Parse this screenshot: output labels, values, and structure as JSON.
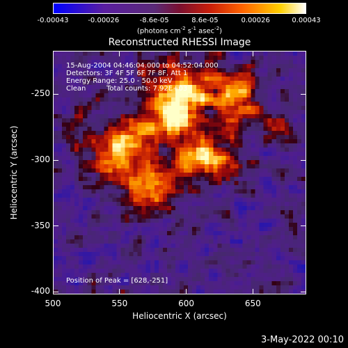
{
  "colorbar": {
    "tick_labels": [
      "-0.00043",
      "-0.00026",
      "-8.6e-05",
      "8.6e-05",
      "0.00026",
      "0.00043"
    ],
    "unit_label": "(photons cm",
    "unit_exp1": "-2",
    "unit_mid": " s",
    "unit_exp2": "-1",
    "unit_mid2": " asec",
    "unit_exp3": "-2",
    "unit_close": ")"
  },
  "chart_data": {
    "type": "heatmap",
    "title": "Reconstructed RHESSI Image",
    "xlabel": "Heliocentric X (arcsec)",
    "ylabel": "Heliocentric Y (arcsec)",
    "xlim": [
      500,
      690
    ],
    "ylim": [
      -402,
      -217
    ],
    "x_ticks": [
      "500",
      "550",
      "600",
      "650"
    ],
    "y_ticks": [
      "-250",
      "-300",
      "-350",
      "-400"
    ],
    "color_range": [
      -0.00043,
      0.00043
    ],
    "annotations": {
      "time_range": "15-Aug-2004 04:46:04.000 to 04:52:04.000",
      "detectors": "Detectors: 3F 4F 5F 6F 7F 8F, Att 1",
      "energy": "Energy Range: 25.0 - 50.0 keV",
      "method": "Clean",
      "counts": "Total counts: 7.92E+03",
      "peak": "Position of Peak = [628,-251]"
    },
    "peak": [
      628,
      -251
    ]
  },
  "footer": {
    "date": "3-May-2022 00:10"
  }
}
